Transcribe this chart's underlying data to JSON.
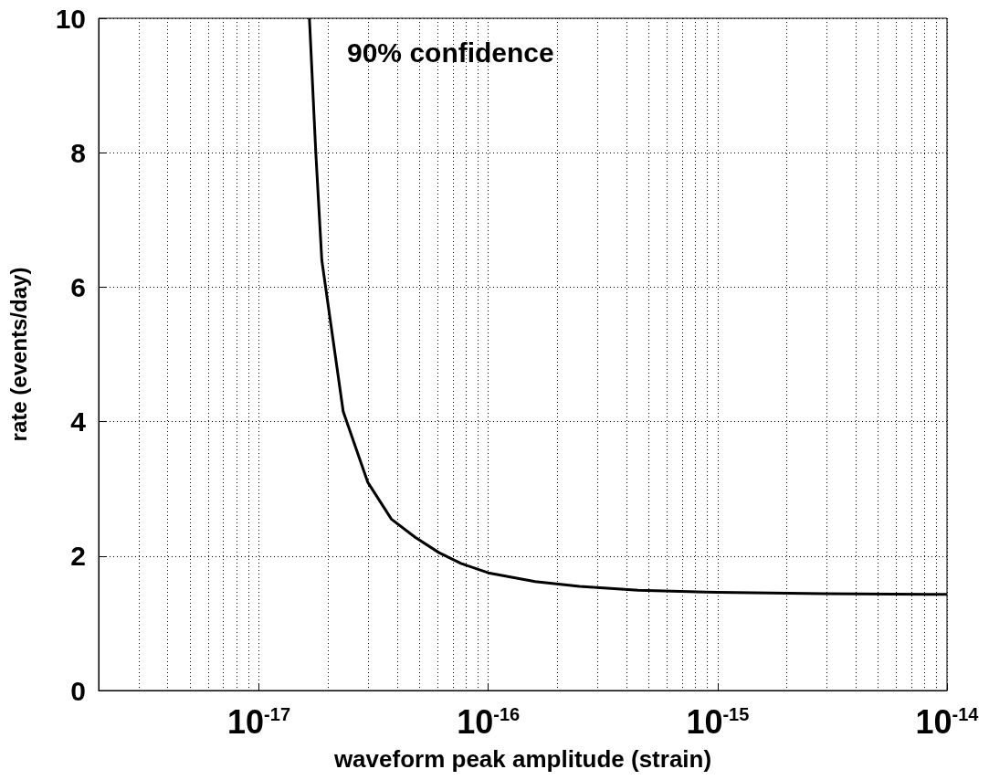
{
  "chart_data": {
    "type": "line",
    "xlabel": "waveform peak amplitude (strain)",
    "ylabel": "rate (events/day)",
    "annotations": [
      "90% confidence"
    ],
    "log": "x",
    "grid": true,
    "marker": "none",
    "line_style": "solid",
    "xlim": [
      2e-18,
      1e-14
    ],
    "ylim": [
      0,
      10
    ],
    "xticks": [
      {
        "value": 1e-17,
        "label": "10$^{-17}$"
      },
      {
        "value": 1e-16,
        "label": "10$^{-16}$"
      },
      {
        "value": 1e-15,
        "label": "10$^{-15}$"
      },
      {
        "value": 1e-14,
        "label": "10$^{-14}$"
      }
    ],
    "yticks": [
      0,
      2,
      4,
      6,
      8,
      10
    ],
    "series": [
      {
        "color": "#000000",
        "x": [
          1.66e-17,
          1.77e-17,
          1.88e-17,
          2.33e-17,
          2.98e-17,
          3.78e-17,
          4.8e-17,
          6.1e-17,
          7.6e-17,
          1e-16,
          1.6e-16,
          2.5e-16,
          4.5e-16,
          1e-15,
          2.9e-15,
          1e-14
        ],
        "values": [
          10,
          8,
          6.4,
          4.15,
          3.1,
          2.55,
          2.28,
          2.05,
          1.89,
          1.75,
          1.62,
          1.55,
          1.49,
          1.46,
          1.44,
          1.43
        ]
      }
    ]
  }
}
